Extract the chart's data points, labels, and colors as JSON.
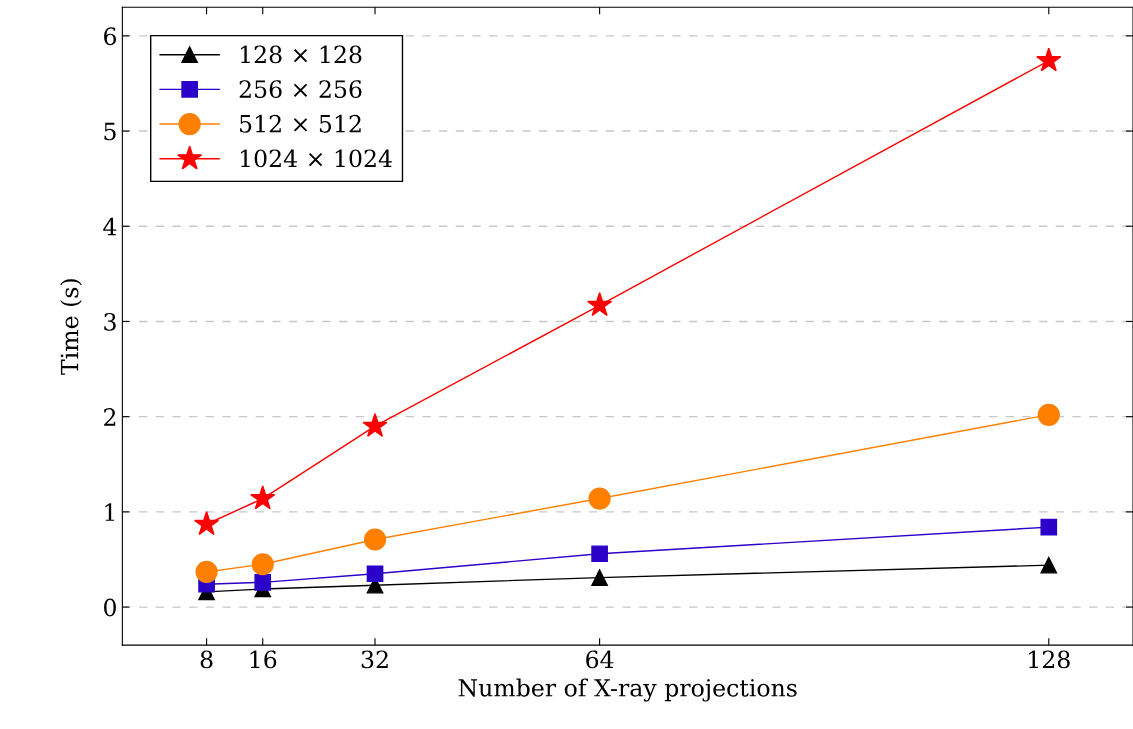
{
  "chart_data": {
    "type": "line",
    "xlabel": "Number of X-ray projections",
    "ylabel": "Time (s)",
    "x": [
      8,
      16,
      32,
      64,
      128
    ],
    "series": [
      {
        "name": "128 × 128",
        "color": "#000000",
        "marker": "triangle",
        "values": [
          0.16,
          0.19,
          0.23,
          0.31,
          0.44
        ]
      },
      {
        "name": "256 × 256",
        "color": "#2b00c8",
        "marker": "square",
        "values": [
          0.24,
          0.26,
          0.35,
          0.56,
          0.84
        ]
      },
      {
        "name": "512 × 512",
        "color": "#ff8000",
        "marker": "circle",
        "values": [
          0.37,
          0.45,
          0.71,
          1.14,
          2.02
        ]
      },
      {
        "name": "1024 × 1024",
        "color": "#ff0000",
        "marker": "star",
        "values": [
          0.87,
          1.14,
          1.9,
          3.17,
          5.74
        ]
      }
    ],
    "xlim": [
      -4,
      140
    ],
    "xticks": [
      8,
      16,
      32,
      64,
      128
    ],
    "ylim": [
      -0.4,
      6.3
    ],
    "yticks": [
      0,
      1,
      2,
      3,
      4,
      5,
      6
    ],
    "grid": "y",
    "legend": "top left",
    "line_style": "solid"
  }
}
